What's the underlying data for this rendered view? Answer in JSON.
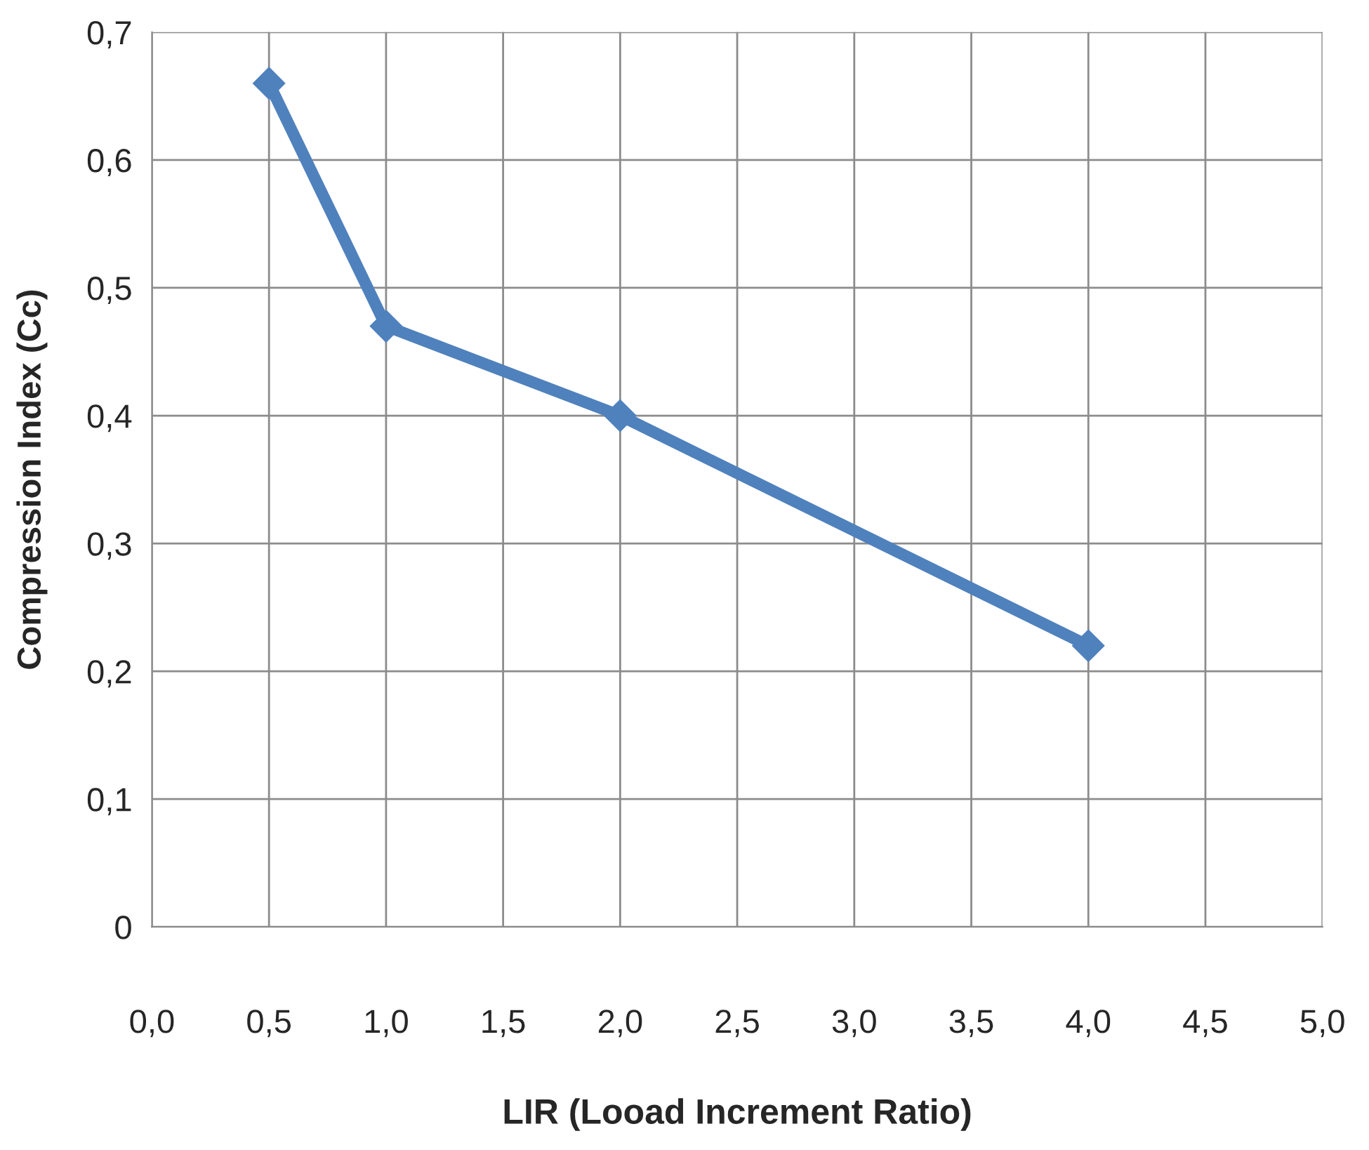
{
  "chart_data": {
    "type": "line",
    "xlabel": "LIR (Looad Increment Ratio)",
    "ylabel": "Compression Index (Cc)",
    "x": [
      0.5,
      1.0,
      2.0,
      4.0
    ],
    "series": [
      {
        "color": "#4f81bd",
        "values": [
          0.66,
          0.47,
          0.4,
          0.22
        ]
      }
    ],
    "xlim": [
      0,
      5
    ],
    "ylim": [
      0,
      0.7
    ],
    "xticks": [
      {
        "value": 0,
        "label": "0,0"
      },
      {
        "value": 0.5,
        "label": "0,5"
      },
      {
        "value": 1,
        "label": "1,0"
      },
      {
        "value": 1.5,
        "label": "1,5"
      },
      {
        "value": 2,
        "label": "2,0"
      },
      {
        "value": 2.5,
        "label": "2,5"
      },
      {
        "value": 3,
        "label": "3,0"
      },
      {
        "value": 3.5,
        "label": "3,5"
      },
      {
        "value": 4,
        "label": "4,0"
      },
      {
        "value": 4.5,
        "label": "4,5"
      },
      {
        "value": 5,
        "label": "5,0"
      }
    ],
    "yticks": [
      0,
      {
        "value": 0.1,
        "label": "0,1"
      },
      {
        "value": 0.2,
        "label": "0,2"
      },
      {
        "value": 0.3,
        "label": "0,3"
      },
      {
        "value": 0.4,
        "label": "0,4"
      },
      {
        "value": 0.5,
        "label": "0,5"
      },
      {
        "value": 0.6,
        "label": "0,6"
      },
      {
        "value": 0.7,
        "label": "0,7"
      }
    ],
    "grid": true,
    "marker": "diamond",
    "line_style": "solid",
    "legend": false
  }
}
